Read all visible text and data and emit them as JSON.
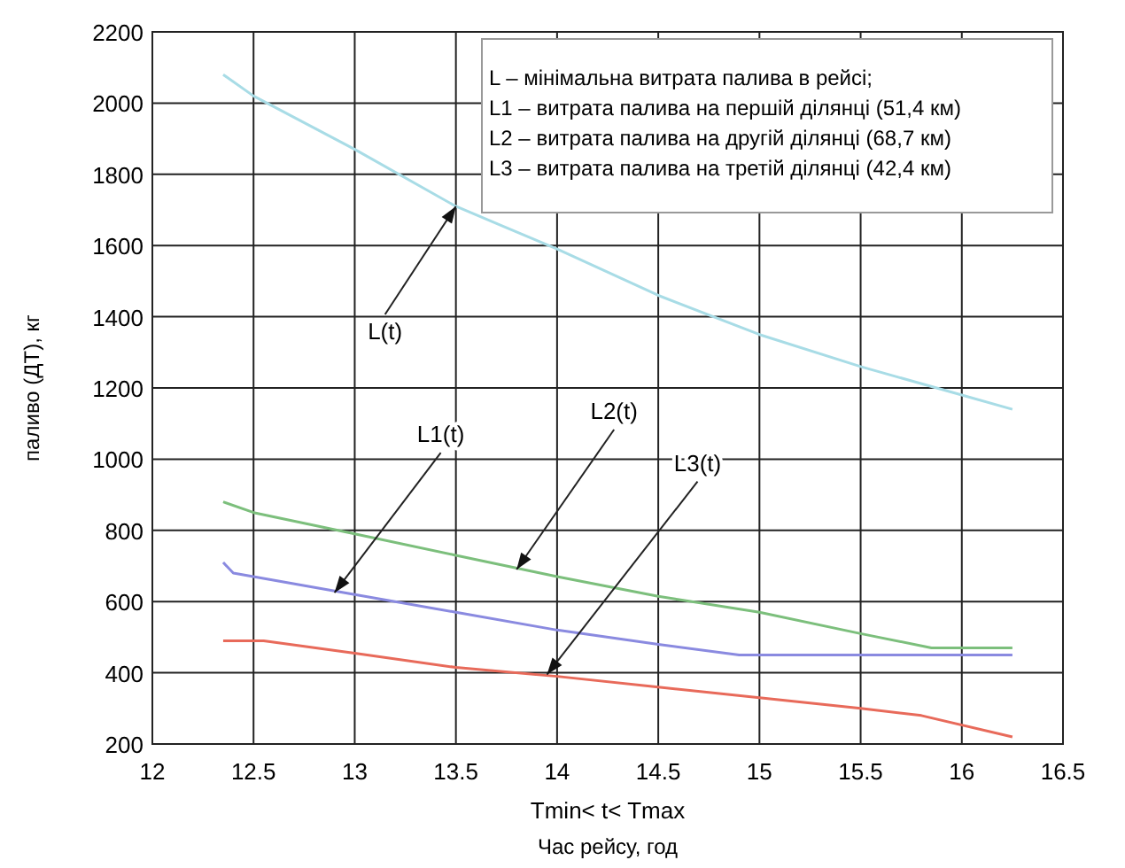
{
  "chart_data": {
    "type": "line",
    "xlabel": "Tmin< t< Tmax",
    "ylabel": "паливо (ДТ), кг",
    "xlim": [
      12,
      16.5
    ],
    "xticks": [
      12,
      12.5,
      13,
      13.5,
      14,
      14.5,
      15,
      15.5,
      16,
      16.5
    ],
    "ylim": [
      200,
      2200
    ],
    "yticks": [
      200,
      400,
      600,
      800,
      1000,
      1200,
      1400,
      1600,
      1800,
      2000,
      2200
    ],
    "grid": true,
    "marker": "none",
    "line_style": "solid",
    "series": [
      {
        "color": "#a8dce6",
        "x": [
          12.35,
          12.5,
          13,
          13.5,
          14,
          14.5,
          15,
          15.5,
          16,
          16.25
        ],
        "values": [
          2080,
          2020,
          1870,
          1710,
          1590,
          1460,
          1350,
          1260,
          1180,
          1140
        ]
      },
      {
        "color": "#7cbf7c",
        "x": [
          12.35,
          12.5,
          13,
          13.5,
          14,
          14.5,
          15,
          15.5,
          15.85,
          16.25
        ],
        "values": [
          880,
          850,
          790,
          730,
          670,
          615,
          570,
          510,
          470,
          470
        ]
      },
      {
        "color": "#8a8ae0",
        "x": [
          12.35,
          12.4,
          13,
          13.5,
          14,
          14.5,
          14.9,
          15,
          16.25
        ],
        "values": [
          710,
          680,
          620,
          570,
          520,
          480,
          450,
          450,
          450
        ]
      },
      {
        "color": "#e86a5a",
        "x": [
          12.35,
          12.55,
          13,
          13.5,
          14,
          14.5,
          15,
          15.5,
          15.8,
          16.25
        ],
        "values": [
          490,
          490,
          455,
          415,
          390,
          360,
          330,
          300,
          280,
          220
        ]
      }
    ],
    "annotations": [
      {
        "text": "L(t)",
        "x": 13.5,
        "y": 1710
      },
      {
        "text": "L1(t)",
        "x": 12.9,
        "y": 625
      },
      {
        "text": "L2(t)",
        "x": 13.8,
        "y": 690
      },
      {
        "text": "L3(t)",
        "x": 13.95,
        "y": 395
      },
      "L – мінімальна витрата палива в рейсі;",
      "L1 – витрата палива на першій ділянці (51,4 км)",
      "L2 – витрата палива на другій ділянці (68,7 км)",
      "L3 – витрата палива на третій ділянці (42,4 км)",
      "Час рейсу, год"
    ]
  }
}
